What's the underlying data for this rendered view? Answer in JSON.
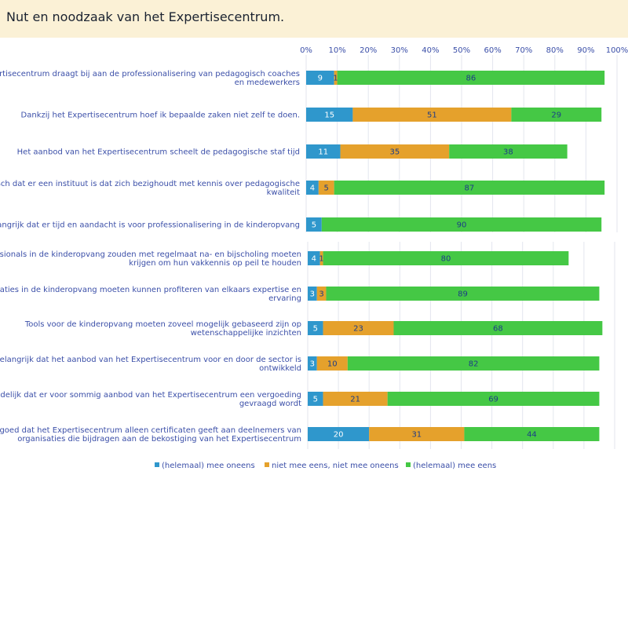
{
  "title": "Nut en noodzaak van het Expertisecentrum.",
  "colors": {
    "disagree": "#2f97cc",
    "neutral": "#e5a12c",
    "agree": "#45c845"
  },
  "chart_data": {
    "type": "bar",
    "orientation": "horizontal",
    "stacked": true,
    "xlim": [
      0,
      100
    ],
    "x_ticks": [
      "0%",
      "10%",
      "20%",
      "30%",
      "40%",
      "50%",
      "60%",
      "70%",
      "80%",
      "90%",
      "100%"
    ],
    "categories": [
      [
        "Het Expertisecentrum draagt bij aan de professionalisering van pedagogisch coaches",
        "en medewerkers"
      ],
      [
        "Dankzij het Expertisecentrum hoef ik bepaalde zaken niet zelf te doen."
      ],
      [
        "Het aanbod van het Expertisecentrum scheelt de pedagogische staf tijd"
      ],
      [
        "Het is logisch dat er een instituut is dat zich bezighoudt met kennis over pedagogische",
        "kwaliteit"
      ],
      [
        "Het is belangrijk dat er tijd en aandacht is voor professionalisering in de kinderopvang"
      ],
      [
        "Professionals in de kinderopvang zouden met regelmaat na- en bijscholing moeten",
        "krijgen om hun vakkennis op peil te houden"
      ],
      [
        "Organisaties in de kinderopvang moeten kunnen profiteren van elkaars expertise en",
        "ervaring"
      ],
      [
        "Tools voor de kinderopvang moeten zoveel mogelijk gebaseerd zijn op",
        "wetenschappelijke inzichten"
      ],
      [
        "Het is belangrijk dat het aanbod van het Expertisecentrum voor en door de sector is",
        "ontwikkeld"
      ],
      [
        "Het is redelijk dat er voor sommig aanbod van het Expertisecentrum een vergoeding",
        "gevraagd wordt"
      ],
      [
        "Het is goed dat het Expertisecentrum alleen certificaten geeft aan deelnemers van",
        "organisaties die bijdragen aan de bekostiging van het Expertisecentrum"
      ]
    ],
    "series": [
      {
        "name": "(helemaal) mee oneens",
        "values": [
          9,
          15,
          11,
          4,
          5,
          4,
          3,
          5,
          3,
          5,
          20
        ]
      },
      {
        "name": "niet mee eens, niet mee oneens",
        "values": [
          1,
          51,
          35,
          5,
          0,
          1,
          3,
          23,
          10,
          21,
          31
        ]
      },
      {
        "name": "(helemaal) mee eens",
        "values": [
          86,
          29,
          38,
          87,
          90,
          80,
          89,
          68,
          82,
          69,
          44
        ]
      }
    ]
  }
}
